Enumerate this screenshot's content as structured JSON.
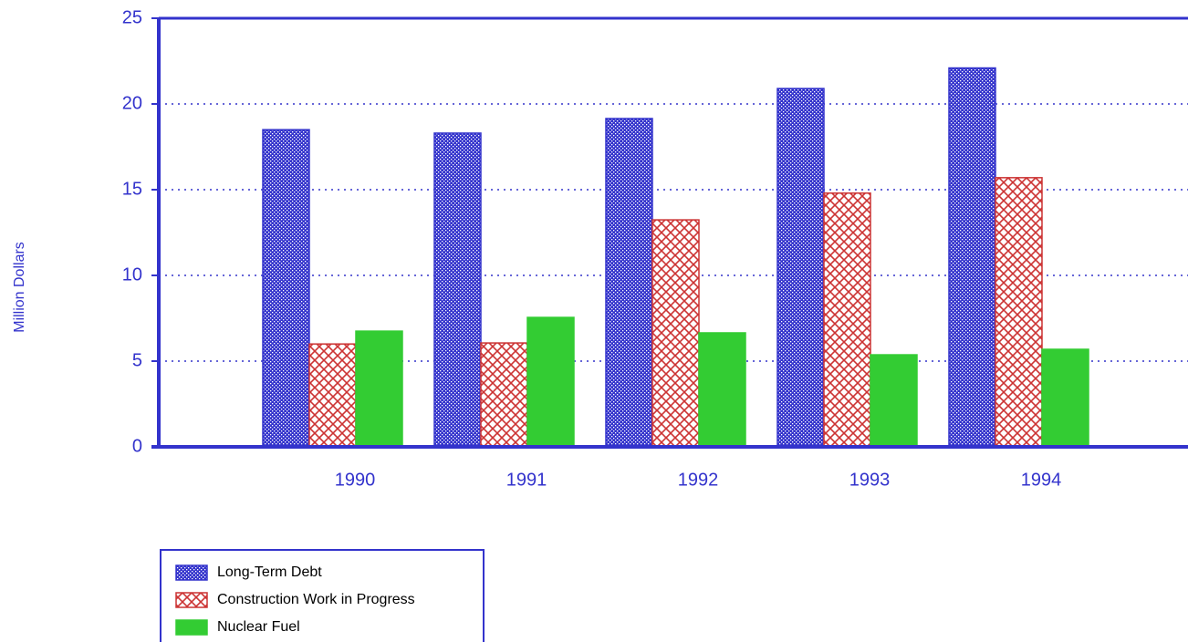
{
  "chart_data": {
    "type": "bar",
    "y_label": "Million Dollars",
    "categories": [
      "1990",
      "1991",
      "1992",
      "1993",
      "1994"
    ],
    "series": [
      {
        "name": "Long-Term Debt",
        "color": "#3333cc",
        "values": [
          18.5,
          18.3,
          19.15,
          20.9,
          22.1
        ]
      },
      {
        "name": "Construction Work in Progress",
        "color": "#cc3333",
        "values": [
          6.0,
          6.06,
          13.24,
          14.8,
          15.7
        ]
      },
      {
        "name": "Nuclear Fuel",
        "color": "#33cc33",
        "values": [
          6.75,
          7.55,
          6.65,
          5.37,
          5.69
        ]
      }
    ],
    "ylim": [
      0,
      25
    ],
    "yticks": [
      0,
      5,
      10,
      15,
      20,
      25
    ],
    "grid": true
  }
}
